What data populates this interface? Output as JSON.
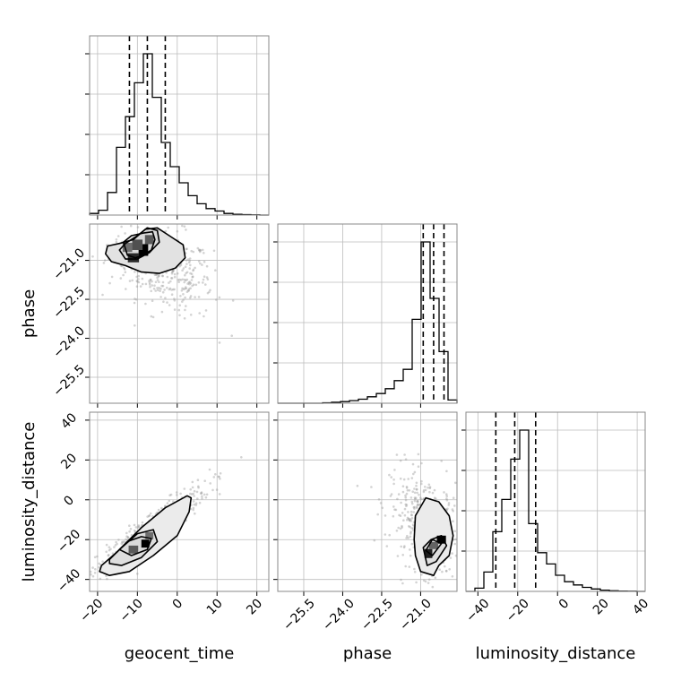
{
  "chart_data": {
    "type": "corner",
    "parameters": [
      "geocent_time",
      "phase",
      "luminosity_distance"
    ],
    "axis_labels": {
      "geocent_time": "geocent_time",
      "phase": "phase",
      "luminosity_distance": "luminosity_distance"
    },
    "ranges": {
      "geocent_time": [
        -22,
        23
      ],
      "phase": [
        -26.5,
        -19.6
      ],
      "luminosity_distance": [
        -46,
        44
      ]
    },
    "ticks": {
      "geocent_time": {
        "values": [
          -20,
          -10,
          0,
          10,
          20
        ],
        "labels": [
          "−20",
          "−10",
          "0",
          "10",
          "20"
        ]
      },
      "phase": {
        "values": [
          -25.5,
          -24.0,
          -22.5,
          -21.0
        ],
        "labels": [
          "−25.5",
          "−24.0",
          "−22.5",
          "−21.0"
        ]
      },
      "luminosity_distance": {
        "values": [
          -40,
          -20,
          0,
          20,
          40
        ],
        "labels": [
          "−40",
          "−20",
          "0",
          "20",
          "40"
        ]
      }
    },
    "quantiles": {
      "geocent_time": [
        -12,
        -7.5,
        -3
      ],
      "phase": [
        -20.9,
        -20.5,
        -20.1
      ],
      "luminosity_distance": [
        -31,
        -21.5,
        -11
      ]
    },
    "histograms": {
      "geocent_time": {
        "edges": [
          -22.0,
          -19.75,
          -17.5,
          -15.25,
          -13.0,
          -10.75,
          -8.5,
          -6.25,
          -4.0,
          -1.75,
          0.5,
          2.75,
          5.0,
          7.25,
          9.5,
          11.75,
          14.0,
          16.25,
          18.5,
          20.75,
          23.0
        ],
        "counts": [
          0.01,
          0.03,
          0.14,
          0.42,
          0.61,
          0.82,
          1.0,
          0.73,
          0.45,
          0.3,
          0.2,
          0.12,
          0.07,
          0.04,
          0.025,
          0.01,
          0.005,
          0.003,
          0.001,
          0.0
        ]
      },
      "phase": {
        "edges": [
          -26.5,
          -26.155,
          -25.81,
          -25.465,
          -25.12,
          -24.775,
          -24.43,
          -24.085,
          -23.74,
          -23.395,
          -23.05,
          -22.705,
          -22.36,
          -22.015,
          -21.67,
          -21.325,
          -20.98,
          -20.635,
          -20.29,
          -19.945,
          -19.6
        ],
        "counts": [
          0.0,
          0.0,
          0.0,
          0.0,
          0.0,
          0.003,
          0.006,
          0.01,
          0.016,
          0.025,
          0.04,
          0.06,
          0.09,
          0.14,
          0.21,
          0.52,
          1.0,
          0.65,
          0.32,
          0.02
        ]
      },
      "luminosity_distance": {
        "edges": [
          -46.0,
          -41.5,
          -37.0,
          -32.5,
          -28.0,
          -23.5,
          -19.0,
          -14.5,
          -10.0,
          -5.5,
          -1.0,
          3.5,
          8.0,
          12.5,
          17.0,
          21.5,
          26.0,
          30.5,
          35.0,
          39.5,
          44.0
        ],
        "counts": [
          0.0,
          0.02,
          0.12,
          0.37,
          0.57,
          0.82,
          1.0,
          0.42,
          0.24,
          0.17,
          0.1,
          0.06,
          0.04,
          0.025,
          0.015,
          0.008,
          0.004,
          0.002,
          0.001,
          0.0
        ]
      }
    },
    "contours": {
      "phase_vs_geocent_time": [
        [
          [
            -13.5,
            -20.3
          ],
          [
            -12.5,
            -20.8
          ],
          [
            -10.5,
            -20.9
          ],
          [
            -8.5,
            -20.8
          ],
          [
            -6.5,
            -20.6
          ],
          [
            -5.6,
            -20.2
          ],
          [
            -6.2,
            -19.9
          ],
          [
            -8.5,
            -19.95
          ],
          [
            -11.5,
            -20.05
          ]
        ],
        [
          [
            -18.0,
            -20.75
          ],
          [
            -16.5,
            -21.05
          ],
          [
            -13.0,
            -21.2
          ],
          [
            -9.0,
            -21.45
          ],
          [
            -4.5,
            -21.5
          ],
          [
            -0.5,
            -21.3
          ],
          [
            2.0,
            -20.9
          ],
          [
            1.5,
            -20.4
          ],
          [
            -2.0,
            -20.05
          ],
          [
            -5.0,
            -19.75
          ],
          [
            -8.0,
            -19.8
          ],
          [
            -11.0,
            -20.2
          ],
          [
            -14.5,
            -20.35
          ],
          [
            -17.5,
            -20.45
          ]
        ],
        [
          [
            -14.5,
            -20.6
          ],
          [
            -13.0,
            -20.95
          ],
          [
            -10.0,
            -20.95
          ],
          [
            -7.0,
            -20.7
          ],
          [
            -4.5,
            -20.3
          ],
          [
            -5.0,
            -19.85
          ],
          [
            -7.5,
            -19.75
          ],
          [
            -10.0,
            -20.05
          ],
          [
            -13.0,
            -20.35
          ]
        ]
      ],
      "luminosity_distance_vs_geocent_time": [
        [
          [
            -19.5,
            -36.0
          ],
          [
            -17.0,
            -38.0
          ],
          [
            -12.0,
            -36.0
          ],
          [
            -6.0,
            -28.0
          ],
          [
            0.0,
            -18.0
          ],
          [
            3.0,
            -6.0
          ],
          [
            3.5,
            1.0
          ],
          [
            2.5,
            2.0
          ],
          [
            -3.0,
            -4.0
          ],
          [
            -9.0,
            -14.0
          ],
          [
            -15.0,
            -26.0
          ],
          [
            -19.0,
            -33.0
          ]
        ],
        [
          [
            -17.0,
            -32.0
          ],
          [
            -14.0,
            -33.0
          ],
          [
            -9.0,
            -29.0
          ],
          [
            -5.0,
            -21.0
          ],
          [
            -6.0,
            -15.0
          ],
          [
            -10.0,
            -17.0
          ],
          [
            -14.5,
            -25.0
          ],
          [
            -17.0,
            -30.0
          ]
        ],
        [
          [
            -14.5,
            -25.0
          ],
          [
            -11.5,
            -28.0
          ],
          [
            -7.5,
            -25.0
          ],
          [
            -6.5,
            -19.5
          ],
          [
            -9.0,
            -18.5
          ],
          [
            -12.5,
            -21.0
          ]
        ]
      ],
      "luminosity_distance_vs_phase": [
        [
          [
            -21.2,
            -28.0
          ],
          [
            -21.0,
            -36.0
          ],
          [
            -20.5,
            -38.0
          ],
          [
            -20.3,
            -33.0
          ],
          [
            -19.9,
            -28.0
          ],
          [
            -19.75,
            -18.0
          ],
          [
            -19.9,
            -8.0
          ],
          [
            -20.3,
            -1.0
          ],
          [
            -20.8,
            1.0
          ],
          [
            -21.2,
            -8.0
          ],
          [
            -21.25,
            -20.0
          ]
        ],
        [
          [
            -20.9,
            -24.0
          ],
          [
            -20.75,
            -33.0
          ],
          [
            -20.4,
            -31.0
          ],
          [
            -20.0,
            -23.0
          ],
          [
            -20.2,
            -18.0
          ],
          [
            -20.6,
            -20.0
          ]
        ],
        [
          [
            -20.8,
            -25.5
          ],
          [
            -20.55,
            -28.0
          ],
          [
            -20.2,
            -22.0
          ],
          [
            -20.55,
            -20.0
          ]
        ]
      ]
    },
    "hist2d_cells": {
      "phase_vs_geocent_time": [
        {
          "x": -8.5,
          "y": -20.6,
          "w": 2.4,
          "h": 0.45,
          "level": 1.0
        },
        {
          "x": -11.0,
          "y": -20.9,
          "w": 2.8,
          "h": 0.35,
          "level": 0.8
        },
        {
          "x": -7.0,
          "y": -20.2,
          "w": 2.2,
          "h": 0.35,
          "level": 0.55
        },
        {
          "x": -12.5,
          "y": -20.5,
          "w": 2.4,
          "h": 0.35,
          "level": 0.45
        },
        {
          "x": -10.0,
          "y": -20.4,
          "w": 2.6,
          "h": 0.4,
          "level": 0.6
        }
      ],
      "luminosity_distance_vs_geocent_time": [
        {
          "x": -8.0,
          "y": -22.0,
          "w": 2.0,
          "h": 4.0,
          "level": 1.0
        },
        {
          "x": -11.0,
          "y": -25.0,
          "w": 2.4,
          "h": 4.0,
          "level": 0.55
        },
        {
          "x": -7.0,
          "y": -18.0,
          "w": 2.0,
          "h": 3.5,
          "level": 0.45
        }
      ],
      "luminosity_distance_vs_phase": [
        {
          "x": -20.2,
          "y": -20.0,
          "w": 0.35,
          "h": 4.0,
          "level": 1.0
        },
        {
          "x": -20.7,
          "y": -27.0,
          "w": 0.3,
          "h": 4.5,
          "level": 0.85
        },
        {
          "x": -20.5,
          "y": -23.0,
          "w": 0.35,
          "h": 3.5,
          "level": 0.5
        }
      ]
    },
    "scatter_points": {
      "phase_vs_geocent_time": {
        "center": [
          -4.0,
          -21.2
        ],
        "spread": [
          6.5,
          0.9
        ],
        "correlation": -0.45,
        "n": 450
      },
      "luminosity_distance_vs_geocent_time": {
        "center": [
          -6.0,
          -14.0
        ],
        "spread": [
          7.0,
          11.0
        ],
        "correlation": 0.92,
        "n": 450
      },
      "luminosity_distance_vs_phase": {
        "center": [
          -20.8,
          -12.0
        ],
        "spread": [
          0.7,
          13.0
        ],
        "correlation": -0.35,
        "n": 400
      }
    }
  }
}
